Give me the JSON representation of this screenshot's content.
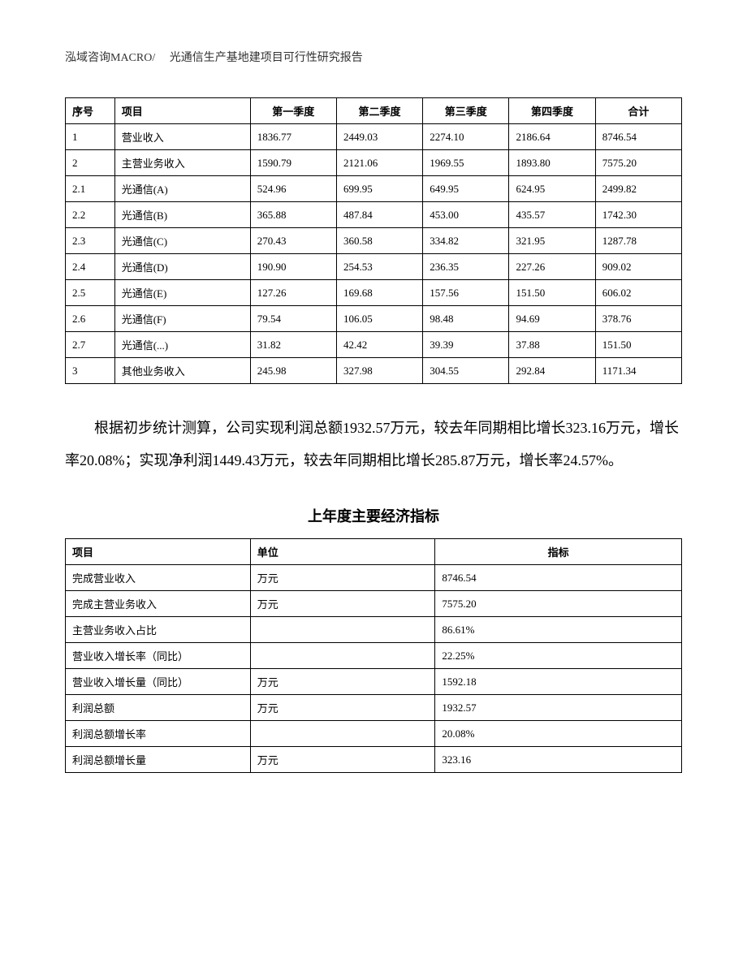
{
  "header": {
    "text": "泓域咨询MACRO/　 光通信生产基地建项目可行性研究报告"
  },
  "table1": {
    "columns": [
      "序号",
      "项目",
      "第一季度",
      "第二季度",
      "第三季度",
      "第四季度",
      "合计"
    ],
    "rows": [
      [
        "1",
        "营业收入",
        "1836.77",
        "2449.03",
        "2274.10",
        "2186.64",
        "8746.54"
      ],
      [
        "2",
        "主营业务收入",
        "1590.79",
        "2121.06",
        "1969.55",
        "1893.80",
        "7575.20"
      ],
      [
        "2.1",
        "光通信(A)",
        "524.96",
        "699.95",
        "649.95",
        "624.95",
        "2499.82"
      ],
      [
        "2.2",
        "光通信(B)",
        "365.88",
        "487.84",
        "453.00",
        "435.57",
        "1742.30"
      ],
      [
        "2.3",
        "光通信(C)",
        "270.43",
        "360.58",
        "334.82",
        "321.95",
        "1287.78"
      ],
      [
        "2.4",
        "光通信(D)",
        "190.90",
        "254.53",
        "236.35",
        "227.26",
        "909.02"
      ],
      [
        "2.5",
        "光通信(E)",
        "127.26",
        "169.68",
        "157.56",
        "151.50",
        "606.02"
      ],
      [
        "2.6",
        "光通信(F)",
        "79.54",
        "106.05",
        "98.48",
        "94.69",
        "378.76"
      ],
      [
        "2.7",
        "光通信(...)",
        "31.82",
        "42.42",
        "39.39",
        "37.88",
        "151.50"
      ],
      [
        "3",
        "其他业务收入",
        "245.98",
        "327.98",
        "304.55",
        "292.84",
        "1171.34"
      ]
    ]
  },
  "paragraph": {
    "text": "根据初步统计测算，公司实现利润总额1932.57万元，较去年同期相比增长323.16万元，增长率20.08%；实现净利润1449.43万元，较去年同期相比增长285.87万元，增长率24.57%。"
  },
  "section_title": "上年度主要经济指标",
  "table2": {
    "columns": [
      "项目",
      "单位",
      "指标"
    ],
    "rows": [
      [
        "完成营业收入",
        "万元",
        "8746.54"
      ],
      [
        "完成主营业务收入",
        "万元",
        "7575.20"
      ],
      [
        "主营业务收入占比",
        "",
        "86.61%"
      ],
      [
        "营业收入增长率（同比）",
        "",
        "22.25%"
      ],
      [
        "营业收入增长量（同比）",
        "万元",
        "1592.18"
      ],
      [
        "利润总额",
        "万元",
        "1932.57"
      ],
      [
        "利润总额增长率",
        "",
        "20.08%"
      ],
      [
        "利润总额增长量",
        "万元",
        "323.16"
      ]
    ]
  }
}
